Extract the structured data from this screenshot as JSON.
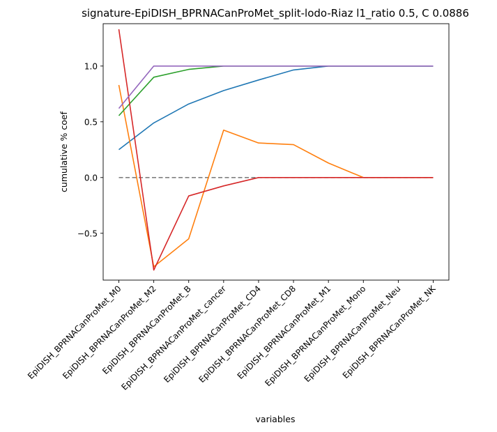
{
  "chart_data": {
    "type": "line",
    "title": "signature-EpiDISH_BPRNACanProMet_split-lodo-Riaz l1_ratio 0.5, C 0.0886",
    "xlabel": "variables",
    "ylabel": "cumulative % coef",
    "categories": [
      "EpiDISH_BPRNACanProMet_M0",
      "EpiDISH_BPRNACanProMet_M2",
      "EpiDISH_BPRNACanProMet_B",
      "EpiDISH_BPRNACanProMet_cancer",
      "EpiDISH_BPRNACanProMet_CD4",
      "EpiDISH_BPRNACanProMet_CD8",
      "EpiDISH_BPRNACanProMet_M1",
      "EpiDISH_BPRNACanProMet_Mono",
      "EpiDISH_BPRNACanProMet_Neu",
      "EpiDISH_BPRNACanProMet_NK"
    ],
    "yticks": [
      -0.5,
      0.0,
      0.5,
      1.0
    ],
    "ytick_labels": [
      "−0.5",
      "0.0",
      "0.5",
      "1.0"
    ],
    "ylim": [
      -0.92,
      1.38
    ],
    "grid": false,
    "reference_line": {
      "y": 0.0,
      "color": "#808080",
      "style": "dashed"
    },
    "series": [
      {
        "color": "#1f77b4",
        "values": [
          0.25,
          0.49,
          0.66,
          0.78,
          0.875,
          0.965,
          1.0,
          1.0,
          1.0,
          1.0
        ]
      },
      {
        "color": "#ff7f0e",
        "values": [
          0.83,
          -0.8,
          -0.55,
          0.425,
          0.31,
          0.295,
          0.13,
          0.0,
          0.0,
          0.0
        ]
      },
      {
        "color": "#2ca02c",
        "values": [
          0.555,
          0.9,
          0.97,
          1.0,
          1.0,
          1.0,
          1.0,
          1.0,
          1.0,
          1.0
        ]
      },
      {
        "color": "#d62728",
        "values": [
          1.33,
          -0.83,
          -0.165,
          -0.075,
          0.0,
          0.0,
          0.0,
          0.0,
          0.0,
          0.0
        ]
      },
      {
        "color": "#9467bd",
        "values": [
          0.62,
          1.0,
          1.0,
          1.0,
          1.0,
          1.0,
          1.0,
          1.0,
          1.0,
          1.0
        ]
      }
    ]
  }
}
